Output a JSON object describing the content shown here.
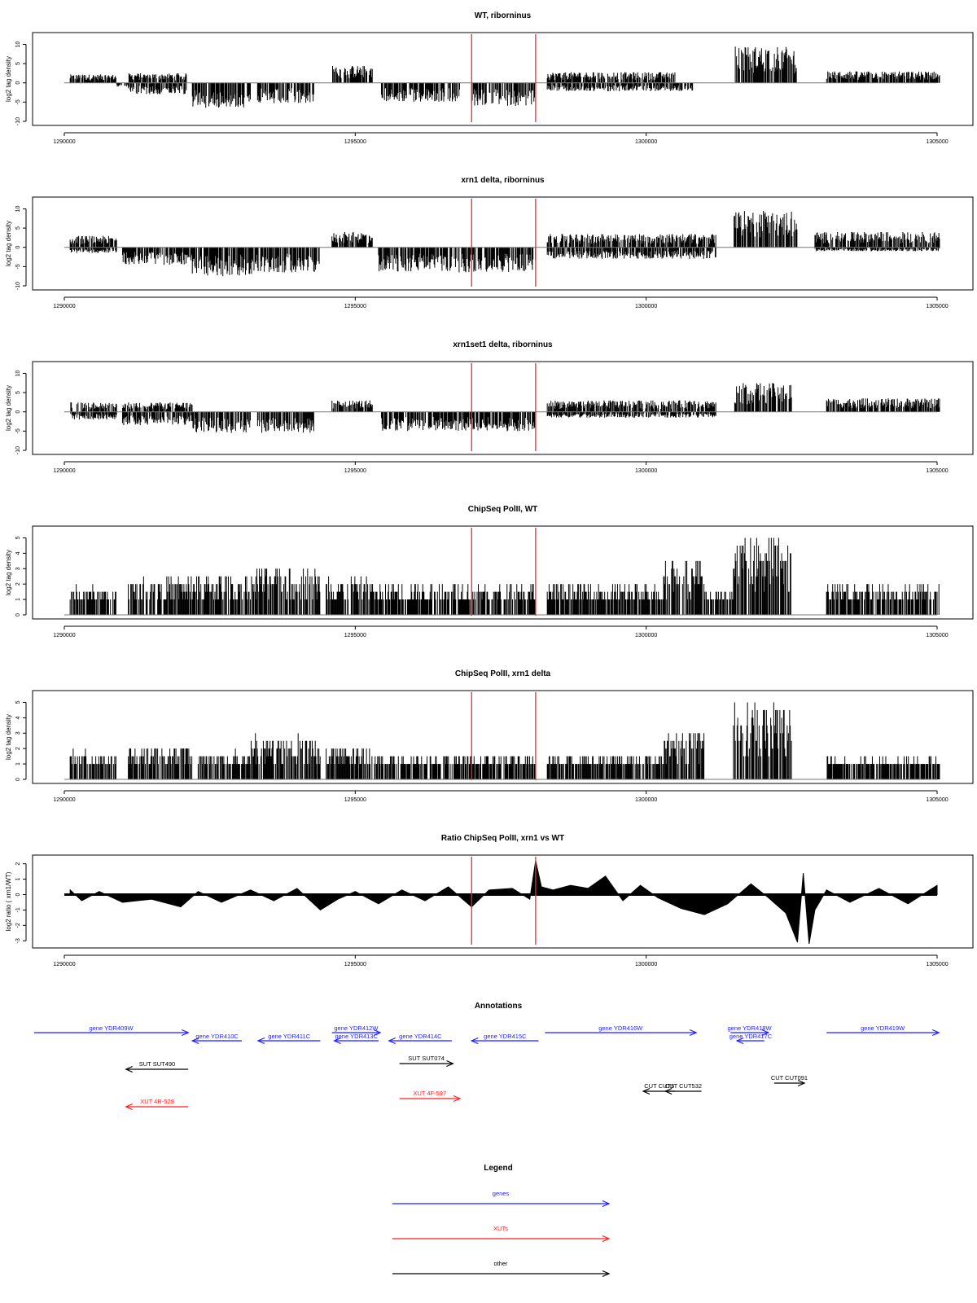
{
  "chart_data": [
    {
      "type": "bar",
      "title": "WT, riborninus",
      "ylabel": "log2 tag density",
      "xlim": [
        1290000,
        1305000
      ],
      "ylim": [
        -10,
        12
      ],
      "yticks": [
        -10,
        -5,
        0,
        5,
        10
      ],
      "xticks": [
        1290000,
        1295000,
        1300000,
        1305000
      ],
      "vlines": [
        1297000,
        1298100
      ],
      "segments": [
        {
          "from": 1290100,
          "to": 1290900,
          "sign": 1,
          "amp": 2.2
        },
        {
          "from": 1290900,
          "to": 1291100,
          "sign": -1,
          "amp": 1.0
        },
        {
          "from": 1291100,
          "to": 1292100,
          "sign": 1,
          "amp": 2.5
        },
        {
          "from": 1291100,
          "to": 1292100,
          "sign": -1,
          "amp": 3.0
        },
        {
          "from": 1292200,
          "to": 1293200,
          "sign": -1,
          "amp": 6.5
        },
        {
          "from": 1293300,
          "to": 1294300,
          "sign": -1,
          "amp": 5.5
        },
        {
          "from": 1294600,
          "to": 1295300,
          "sign": 1,
          "amp": 4.5
        },
        {
          "from": 1295450,
          "to": 1296800,
          "sign": -1,
          "amp": 5.0
        },
        {
          "from": 1297000,
          "to": 1298100,
          "sign": -1,
          "amp": 6.0
        },
        {
          "from": 1298300,
          "to": 1300500,
          "sign": 1,
          "amp": 2.8
        },
        {
          "from": 1298300,
          "to": 1300800,
          "sign": -1,
          "amp": 2.2
        },
        {
          "from": 1301500,
          "to": 1302600,
          "sign": 1,
          "amp": 9.5
        },
        {
          "from": 1303100,
          "to": 1305050,
          "sign": 1,
          "amp": 3.0
        }
      ]
    },
    {
      "type": "bar",
      "title": "xrn1 delta, riborninus",
      "ylabel": "log2 tag density",
      "xlim": [
        1290000,
        1305000
      ],
      "ylim": [
        -10,
        12
      ],
      "yticks": [
        -10,
        -5,
        0,
        5,
        10
      ],
      "xticks": [
        1290000,
        1295000,
        1300000,
        1305000
      ],
      "vlines": [
        1297000,
        1298100
      ],
      "segments": [
        {
          "from": 1290100,
          "to": 1290900,
          "sign": 1,
          "amp": 3.0
        },
        {
          "from": 1290100,
          "to": 1290900,
          "sign": -1,
          "amp": 1.5
        },
        {
          "from": 1291000,
          "to": 1292200,
          "sign": -1,
          "amp": 4.5
        },
        {
          "from": 1292200,
          "to": 1293300,
          "sign": -1,
          "amp": 7.5
        },
        {
          "from": 1293300,
          "to": 1294400,
          "sign": -1,
          "amp": 6.5
        },
        {
          "from": 1294600,
          "to": 1295300,
          "sign": 1,
          "amp": 4.0
        },
        {
          "from": 1295400,
          "to": 1298100,
          "sign": -1,
          "amp": 6.5
        },
        {
          "from": 1298300,
          "to": 1301200,
          "sign": 1,
          "amp": 3.5
        },
        {
          "from": 1298300,
          "to": 1301200,
          "sign": -1,
          "amp": 3.0
        },
        {
          "from": 1301500,
          "to": 1302600,
          "sign": 1,
          "amp": 9.5
        },
        {
          "from": 1302900,
          "to": 1305050,
          "sign": 1,
          "amp": 4.0
        },
        {
          "from": 1302900,
          "to": 1305050,
          "sign": -1,
          "amp": 1.0
        }
      ]
    },
    {
      "type": "bar",
      "title": "xrn1set1 delta, riborninus",
      "ylabel": "log2 tag density",
      "xlim": [
        1290000,
        1305000
      ],
      "ylim": [
        -10,
        12
      ],
      "yticks": [
        -10,
        -5,
        0,
        5,
        10
      ],
      "xticks": [
        1290000,
        1295000,
        1300000,
        1305000
      ],
      "vlines": [
        1297000,
        1298100
      ],
      "segments": [
        {
          "from": 1290100,
          "to": 1290900,
          "sign": 1,
          "amp": 2.5
        },
        {
          "from": 1290100,
          "to": 1290900,
          "sign": -1,
          "amp": 2.0
        },
        {
          "from": 1291000,
          "to": 1292200,
          "sign": 1,
          "amp": 2.5
        },
        {
          "from": 1291000,
          "to": 1292200,
          "sign": -1,
          "amp": 3.5
        },
        {
          "from": 1292200,
          "to": 1293200,
          "sign": -1,
          "amp": 5.5
        },
        {
          "from": 1293300,
          "to": 1294300,
          "sign": -1,
          "amp": 5.5
        },
        {
          "from": 1294600,
          "to": 1295300,
          "sign": 1,
          "amp": 3.0
        },
        {
          "from": 1295450,
          "to": 1298100,
          "sign": -1,
          "amp": 5.0
        },
        {
          "from": 1298300,
          "to": 1301200,
          "sign": 1,
          "amp": 3.0
        },
        {
          "from": 1298300,
          "to": 1301200,
          "sign": -1,
          "amp": 1.5
        },
        {
          "from": 1301500,
          "to": 1302500,
          "sign": 1,
          "amp": 7.5
        },
        {
          "from": 1303100,
          "to": 1305050,
          "sign": 1,
          "amp": 3.5
        }
      ]
    },
    {
      "type": "bar",
      "title": "ChipSeq PolII, WT",
      "ylabel": "log2 tag density",
      "xlim": [
        1290000,
        1305000
      ],
      "ylim": [
        0,
        5.5
      ],
      "yticks": [
        0,
        1,
        2,
        3,
        4,
        5
      ],
      "xticks": [
        1290000,
        1295000,
        1300000,
        1305000
      ],
      "vlines": [
        1297000,
        1298100
      ],
      "segments": [
        {
          "from": 1290100,
          "to": 1290900,
          "sign": 1,
          "amp": 1.8
        },
        {
          "from": 1291100,
          "to": 1292200,
          "sign": 1,
          "amp": 2.5
        },
        {
          "from": 1292200,
          "to": 1293300,
          "sign": 1,
          "amp": 2.5
        },
        {
          "from": 1293300,
          "to": 1294400,
          "sign": 1,
          "amp": 3.0
        },
        {
          "from": 1294500,
          "to": 1295300,
          "sign": 1,
          "amp": 2.5
        },
        {
          "from": 1295300,
          "to": 1298100,
          "sign": 1,
          "amp": 2.0
        },
        {
          "from": 1298300,
          "to": 1300300,
          "sign": 1,
          "amp": 2.0
        },
        {
          "from": 1300300,
          "to": 1301000,
          "sign": 1,
          "amp": 3.8
        },
        {
          "from": 1301000,
          "to": 1301500,
          "sign": 1,
          "amp": 1.5
        },
        {
          "from": 1301500,
          "to": 1302500,
          "sign": 1,
          "amp": 5.2
        },
        {
          "from": 1303100,
          "to": 1305050,
          "sign": 1,
          "amp": 2.0
        }
      ]
    },
    {
      "type": "bar",
      "title": "ChipSeq PolII, xrn1 delta",
      "ylabel": "log2 tag density",
      "xlim": [
        1290000,
        1305000
      ],
      "ylim": [
        0,
        5.5
      ],
      "yticks": [
        0,
        1,
        2,
        3,
        4,
        5
      ],
      "xticks": [
        1290000,
        1295000,
        1300000,
        1305000
      ],
      "vlines": [
        1297000,
        1298100
      ],
      "segments": [
        {
          "from": 1290100,
          "to": 1290900,
          "sign": 1,
          "amp": 1.8
        },
        {
          "from": 1291100,
          "to": 1292200,
          "sign": 1,
          "amp": 2.2
        },
        {
          "from": 1292300,
          "to": 1293200,
          "sign": 1,
          "amp": 1.8
        },
        {
          "from": 1293200,
          "to": 1294400,
          "sign": 1,
          "amp": 2.8
        },
        {
          "from": 1294500,
          "to": 1295300,
          "sign": 1,
          "amp": 2.2
        },
        {
          "from": 1295300,
          "to": 1298100,
          "sign": 1,
          "amp": 1.6
        },
        {
          "from": 1298300,
          "to": 1300300,
          "sign": 1,
          "amp": 1.6
        },
        {
          "from": 1300300,
          "to": 1301000,
          "sign": 1,
          "amp": 3.0
        },
        {
          "from": 1301500,
          "to": 1302500,
          "sign": 1,
          "amp": 5.0
        },
        {
          "from": 1303100,
          "to": 1305050,
          "sign": 1,
          "amp": 1.4
        }
      ]
    },
    {
      "type": "area",
      "title": "Ratio ChipSeq PolII, xrn1 vs WT",
      "ylabel": "log2 ratio ( xrn1/WT)",
      "xlim": [
        1290000,
        1305000
      ],
      "ylim": [
        -3.2,
        2.3
      ],
      "yticks": [
        -3,
        -2,
        -1,
        0,
        1,
        2
      ],
      "xticks": [
        1290000,
        1295000,
        1300000,
        1305000
      ],
      "vlines": [
        1297000,
        1298100
      ],
      "x": [
        1290100,
        1290300,
        1290600,
        1291000,
        1291500,
        1292000,
        1292300,
        1292700,
        1293200,
        1293600,
        1294000,
        1294400,
        1294700,
        1295000,
        1295400,
        1295800,
        1296200,
        1296600,
        1297000,
        1297300,
        1297700,
        1298000,
        1298100,
        1298200,
        1298400,
        1298700,
        1299000,
        1299300,
        1299600,
        1299900,
        1300200,
        1300600,
        1301000,
        1301400,
        1301800,
        1302100,
        1302400,
        1302600,
        1302700,
        1302800,
        1302900,
        1303100,
        1303500,
        1304000,
        1304500,
        1305000
      ],
      "y": [
        0.3,
        -0.4,
        0.2,
        -0.5,
        -0.3,
        -0.8,
        0.2,
        -0.5,
        0.3,
        -0.4,
        0.4,
        -1.0,
        -0.3,
        0.2,
        -0.6,
        0.3,
        -0.4,
        0.5,
        -0.8,
        0.3,
        0.4,
        -0.3,
        2.2,
        0.5,
        0.3,
        0.6,
        0.4,
        1.2,
        -0.4,
        0.6,
        -0.2,
        -0.9,
        -1.3,
        -0.6,
        0.7,
        -0.2,
        -1.2,
        -3.1,
        1.4,
        -3.2,
        -1.0,
        0.3,
        -0.5,
        0.4,
        -0.6,
        0.6
      ]
    }
  ],
  "annotations": {
    "title": "Annotations",
    "genes": [
      {
        "label": "gene YDR409W",
        "start": 1289480,
        "end": 1292130,
        "dir": "fwd",
        "row": 0
      },
      {
        "label": "gene YDR410C",
        "start": 1292200,
        "end": 1293050,
        "dir": "rev",
        "row": 1
      },
      {
        "label": "gene YDR411C",
        "start": 1293330,
        "end": 1294400,
        "dir": "rev",
        "row": 1
      },
      {
        "label": "gene YDR412W",
        "start": 1294600,
        "end": 1295430,
        "dir": "fwd",
        "row": 0
      },
      {
        "label": "gene YDR413C",
        "start": 1294640,
        "end": 1295400,
        "dir": "rev",
        "row": 1
      },
      {
        "label": "gene YDR414C",
        "start": 1295580,
        "end": 1296660,
        "dir": "rev",
        "row": 1
      },
      {
        "label": "gene YDR415C",
        "start": 1297000,
        "end": 1298150,
        "dir": "rev",
        "row": 1
      },
      {
        "label": "gene YDR416W",
        "start": 1298260,
        "end": 1300860,
        "dir": "fwd",
        "row": 0
      },
      {
        "label": "gene YDR418W",
        "start": 1301450,
        "end": 1302100,
        "dir": "fwd",
        "row": 0
      },
      {
        "label": "gene YDR417C",
        "start": 1301560,
        "end": 1302030,
        "dir": "rev",
        "row": 1
      },
      {
        "label": "gene YDR419W",
        "start": 1303100,
        "end": 1305030,
        "dir": "fwd",
        "row": 0
      }
    ],
    "xuts": [
      {
        "label": "XUT 4R-529",
        "start": 1291060,
        "end": 1292130,
        "dir": "rev"
      },
      {
        "label": "XUT 4F-597",
        "start": 1295760,
        "end": 1296800,
        "dir": "fwd"
      }
    ],
    "others": [
      {
        "label": "SUT SUT490",
        "start": 1291060,
        "end": 1292130,
        "dir": "rev",
        "row": 0
      },
      {
        "label": "SUT SUT074",
        "start": 1295760,
        "end": 1296680,
        "dir": "fwd",
        "row": 0
      },
      {
        "label": "CUT CUT091",
        "start": 1302200,
        "end": 1302720,
        "dir": "fwd",
        "row": 1
      },
      {
        "label": "CUT CUT532",
        "start": 1300330,
        "end": 1300950,
        "dir": "rev",
        "row": 2
      },
      {
        "label": "CUT CUT5",
        "start": 1299950,
        "end": 1300500,
        "dir": "rev",
        "row": 2
      }
    ]
  },
  "legend": {
    "title": "Legend",
    "entries": [
      {
        "label": "genes",
        "color": "#1e1eff"
      },
      {
        "label": "XUTs",
        "color": "#ff1e1e"
      },
      {
        "label": "other",
        "color": "#000000"
      }
    ]
  },
  "colors": {
    "gene": "#1e1eff",
    "xut": "#ff1e1e",
    "other": "#000000",
    "vline": "#e03030",
    "bars": "#000000"
  }
}
